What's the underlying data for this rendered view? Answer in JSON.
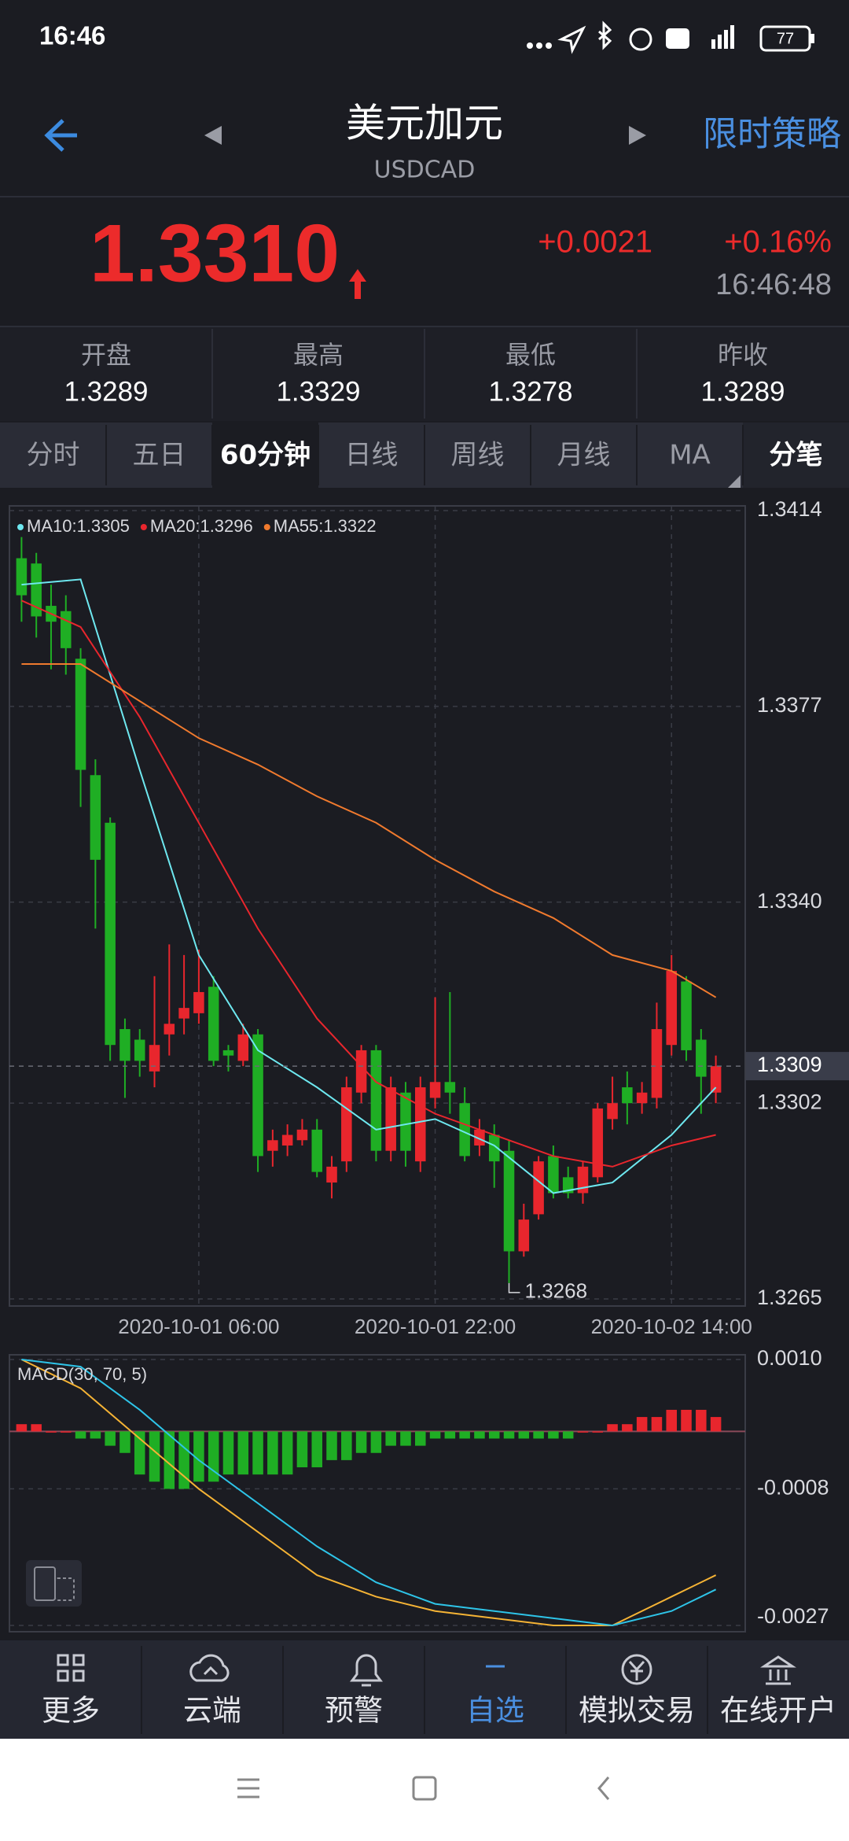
{
  "status_bar": {
    "time": "16:46",
    "battery": "77"
  },
  "header": {
    "title": "美元加元",
    "subtitle": "USDCAD",
    "action": "限时策略"
  },
  "quote": {
    "price": "1.3310",
    "change": "+0.0021",
    "change_pct": "+0.16%",
    "time": "16:46:48"
  },
  "stats": [
    {
      "label": "开盘",
      "value": "1.3289"
    },
    {
      "label": "最高",
      "value": "1.3329"
    },
    {
      "label": "最低",
      "value": "1.3278"
    },
    {
      "label": "昨收",
      "value": "1.3289"
    }
  ],
  "tabs": {
    "items": [
      "分时",
      "五日",
      "60分钟",
      "日线",
      "周线",
      "月线",
      "MA",
      "分笔"
    ],
    "active": 2
  },
  "chart_data": [
    {
      "type": "candlestick",
      "up_color": "#e8262d",
      "down_color": "#1fae24",
      "categories": [
        null,
        null,
        null,
        null,
        null,
        null,
        null,
        null,
        null,
        null,
        null,
        null,
        "2020-10-01 06:00",
        null,
        null,
        null,
        null,
        null,
        null,
        null,
        null,
        null,
        null,
        null,
        null,
        null,
        null,
        null,
        "2020-10-01 22:00",
        null,
        null,
        null,
        null,
        null,
        null,
        null,
        null,
        null,
        null,
        null,
        null,
        null,
        null,
        null,
        "2020-10-02 14:00",
        null,
        null,
        null
      ],
      "open": [
        1.3405,
        1.3404,
        1.3396,
        1.3395,
        1.3386,
        1.3364,
        1.3355,
        1.3316,
        1.3314,
        1.3308,
        1.3315,
        1.3318,
        1.3319,
        1.3324,
        1.3312,
        1.331,
        1.3315,
        1.3293,
        1.3294,
        1.3295,
        1.3297,
        1.3287,
        1.3291,
        1.3304,
        1.3312,
        1.3293,
        1.3304,
        1.3291,
        1.3303,
        1.3306,
        1.3302,
        1.3294,
        1.3296,
        1.3293,
        1.3274,
        1.3281,
        1.3292,
        1.3288,
        1.3285,
        1.3288,
        1.3299,
        1.3305,
        1.3302,
        1.3303,
        1.3313,
        1.3325,
        1.3314,
        1.3304
      ],
      "high": [
        1.3409,
        1.3406,
        1.34,
        1.3398,
        1.3388,
        1.3367,
        1.3356,
        1.3318,
        1.3316,
        1.3326,
        1.3332,
        1.333,
        1.3331,
        1.3326,
        1.3313,
        1.3317,
        1.3316,
        1.3297,
        1.3298,
        1.3299,
        1.3299,
        1.3292,
        1.3307,
        1.3313,
        1.3313,
        1.3307,
        1.3306,
        1.3307,
        1.3322,
        1.3323,
        1.3305,
        1.3299,
        1.3298,
        1.3295,
        1.3283,
        1.3292,
        1.3294,
        1.329,
        1.3291,
        1.3302,
        1.3307,
        1.3308,
        1.3306,
        1.3321,
        1.333,
        1.3326,
        1.3316,
        1.3311
      ],
      "low": [
        1.3393,
        1.339,
        1.3384,
        1.3383,
        1.3358,
        1.3335,
        1.331,
        1.3303,
        1.3307,
        1.3305,
        1.3311,
        1.3315,
        1.3317,
        1.3309,
        1.3308,
        1.3309,
        1.3289,
        1.329,
        1.3292,
        1.3294,
        1.3288,
        1.3284,
        1.3289,
        1.3302,
        1.3291,
        1.3291,
        1.329,
        1.3289,
        1.3301,
        1.33,
        1.3291,
        1.3292,
        1.3286,
        1.3268,
        1.3273,
        1.328,
        1.3284,
        1.3284,
        1.3283,
        1.3287,
        1.3297,
        1.3298,
        1.33,
        1.3301,
        1.3311,
        1.331,
        1.33,
        1.3302
      ],
      "close": [
        1.3398,
        1.3394,
        1.3393,
        1.3388,
        1.3365,
        1.3348,
        1.3313,
        1.331,
        1.331,
        1.3313,
        1.3317,
        1.332,
        1.3323,
        1.331,
        1.3311,
        1.3315,
        1.3292,
        1.3295,
        1.3296,
        1.3297,
        1.3289,
        1.329,
        1.3305,
        1.3312,
        1.3293,
        1.3305,
        1.3293,
        1.3305,
        1.3306,
        1.3304,
        1.3292,
        1.3297,
        1.3291,
        1.3274,
        1.328,
        1.3291,
        1.3285,
        1.3285,
        1.329,
        1.3301,
        1.3302,
        1.3302,
        1.3304,
        1.3316,
        1.3327,
        1.3312,
        1.3307,
        1.3309
      ],
      "series": [
        {
          "label": "MA10:1.3305",
          "color": "#6ee8f0",
          "x": [
            0,
            4,
            8,
            12,
            16,
            20,
            24,
            28,
            32,
            36,
            40,
            44,
            47
          ],
          "values": [
            1.34,
            1.3401,
            1.3365,
            1.333,
            1.3312,
            1.3305,
            1.3297,
            1.3299,
            1.3294,
            1.3285,
            1.3287,
            1.3296,
            1.3305
          ]
        },
        {
          "label": "MA20:1.3296",
          "color": "#e8262d",
          "x": [
            0,
            4,
            8,
            12,
            16,
            20,
            24,
            28,
            32,
            36,
            40,
            44,
            47
          ],
          "values": [
            1.3397,
            1.3392,
            1.3375,
            1.3355,
            1.3335,
            1.3318,
            1.3306,
            1.33,
            1.3296,
            1.3292,
            1.329,
            1.3294,
            1.3296
          ]
        },
        {
          "label": "MA55:1.3322",
          "color": "#f07a2e",
          "x": [
            0,
            4,
            8,
            12,
            16,
            20,
            24,
            28,
            32,
            36,
            40,
            44,
            47
          ],
          "values": [
            1.3385,
            1.3385,
            1.3378,
            1.3371,
            1.3366,
            1.336,
            1.3355,
            1.3348,
            1.3342,
            1.3337,
            1.333,
            1.3327,
            1.3322
          ]
        }
      ],
      "ylim": [
        1.3265,
        1.3414
      ],
      "yticks": [
        1.3414,
        1.3377,
        {
          "value": 1.334,
          "label": "1.3340"
        },
        1.3302,
        1.3265
      ],
      "last": 1.3309,
      "low_label": {
        "x": 33,
        "value": 1.3268
      },
      "grid": true
    },
    {
      "type": "macd",
      "title": "MACD(30, 70, 5)",
      "up_color": "#e8262d",
      "down_color": "#1fae24",
      "values": [
        0.0001,
        0.0001,
        0,
        0,
        -0.0001,
        -0.0001,
        -0.0002,
        -0.0003,
        -0.0006,
        -0.0007,
        -0.0008,
        -0.0008,
        -0.0007,
        -0.0007,
        -0.0006,
        -0.0006,
        -0.0006,
        -0.0006,
        -0.0006,
        -0.0005,
        -0.0005,
        -0.0004,
        -0.0004,
        -0.0003,
        -0.0003,
        -0.0002,
        -0.0002,
        -0.0002,
        -0.0001,
        -0.0001,
        -0.0001,
        -0.0001,
        -0.0001,
        -0.0001,
        -0.0001,
        -0.0001,
        -0.0001,
        -0.0001,
        0,
        0,
        0.0001,
        0.0001,
        0.0002,
        0.0002,
        0.0003,
        0.0003,
        0.0003,
        0.0002
      ],
      "lines": [
        {
          "color": "#f5b335",
          "x": [
            0,
            4,
            8,
            12,
            16,
            20,
            24,
            28,
            32,
            36,
            40,
            44,
            47
          ],
          "values": [
            0.001,
            0.0006,
            -0.0001,
            -0.0008,
            -0.0014,
            -0.002,
            -0.0023,
            -0.0025,
            -0.0026,
            -0.0027,
            -0.0027,
            -0.0023,
            -0.002
          ]
        },
        {
          "color": "#2ec4e8",
          "x": [
            0,
            4,
            8,
            12,
            16,
            20,
            24,
            28,
            32,
            36,
            40,
            44,
            47
          ],
          "values": [
            0.001,
            0.0009,
            0.0003,
            -0.0004,
            -0.001,
            -0.0016,
            -0.0021,
            -0.0024,
            -0.0025,
            -0.0026,
            -0.0027,
            -0.0025,
            -0.0022
          ]
        }
      ],
      "ylim": [
        -0.0027,
        0.001
      ],
      "yticks": [
        {
          "value": 0.001,
          "label": "0.0010"
        },
        -0.0008,
        -0.0027
      ],
      "grid": true
    }
  ],
  "bottom_nav": {
    "items": [
      "更多",
      "云端",
      "预警",
      "自选",
      "模拟交易",
      "在线开户"
    ],
    "active": 3
  }
}
